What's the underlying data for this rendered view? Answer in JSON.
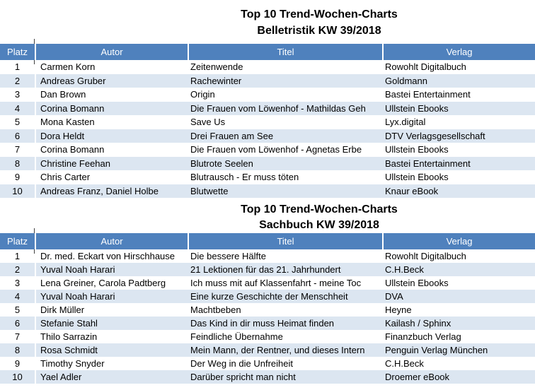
{
  "tables": [
    {
      "id": "belletristik",
      "title_line1": "Top 10 Trend-Wochen-Charts",
      "title_line2": "Belletristik KW 39/2018",
      "columns": [
        "Platz",
        "Autor",
        "Titel",
        "Verlag"
      ],
      "rows": [
        {
          "platz": "1",
          "autor": "Carmen Korn",
          "titel": "Zeitenwende",
          "verlag": "Rowohlt Digitalbuch"
        },
        {
          "platz": "2",
          "autor": "Andreas Gruber",
          "titel": "Rachewinter",
          "verlag": "Goldmann"
        },
        {
          "platz": "3",
          "autor": "Dan Brown",
          "titel": "Origin",
          "verlag": "Bastei Entertainment"
        },
        {
          "platz": "4",
          "autor": "Corina Bomann",
          "titel": "Die Frauen vom Löwenhof - Mathildas Geh",
          "verlag": "Ullstein Ebooks"
        },
        {
          "platz": "5",
          "autor": "Mona Kasten",
          "titel": "Save Us",
          "verlag": "Lyx.digital"
        },
        {
          "platz": "6",
          "autor": "Dora Heldt",
          "titel": "Drei Frauen am See",
          "verlag": "DTV Verlagsgesellschaft"
        },
        {
          "platz": "7",
          "autor": "Corina Bomann",
          "titel": "Die Frauen vom Löwenhof - Agnetas Erbe",
          "verlag": "Ullstein Ebooks"
        },
        {
          "platz": "8",
          "autor": "Christine Feehan",
          "titel": "Blutrote Seelen",
          "verlag": "Bastei Entertainment"
        },
        {
          "platz": "9",
          "autor": "Chris Carter",
          "titel": "Blutrausch - Er muss töten",
          "verlag": "Ullstein Ebooks"
        },
        {
          "platz": "10",
          "autor": "Andreas Franz, Daniel Holbe",
          "titel": "Blutwette",
          "verlag": "Knaur eBook"
        }
      ]
    },
    {
      "id": "sachbuch",
      "title_line1": "Top 10 Trend-Wochen-Charts",
      "title_line2": "Sachbuch KW 39/2018",
      "columns": [
        "Platz",
        "Autor",
        "Titel",
        "Verlag"
      ],
      "rows": [
        {
          "platz": "1",
          "autor": "Dr. med. Eckart von Hirschhause",
          "titel": "Die bessere Hälfte",
          "verlag": "Rowohlt Digitalbuch"
        },
        {
          "platz": "2",
          "autor": "Yuval Noah Harari",
          "titel": "21 Lektionen für das 21. Jahrhundert",
          "verlag": "C.H.Beck"
        },
        {
          "platz": "3",
          "autor": "Lena Greiner, Carola Padtberg",
          "titel": "Ich muss mit auf Klassenfahrt - meine Toc",
          "verlag": "Ullstein Ebooks"
        },
        {
          "platz": "4",
          "autor": "Yuval Noah Harari",
          "titel": "Eine kurze Geschichte der Menschheit",
          "verlag": "DVA"
        },
        {
          "platz": "5",
          "autor": "Dirk Müller",
          "titel": "Machtbeben",
          "verlag": "Heyne"
        },
        {
          "platz": "6",
          "autor": "Stefanie Stahl",
          "titel": "Das Kind in dir muss Heimat finden",
          "verlag": "Kailash / Sphinx"
        },
        {
          "platz": "7",
          "autor": "Thilo Sarrazin",
          "titel": "Feindliche Übernahme",
          "verlag": "Finanzbuch Verlag"
        },
        {
          "platz": "8",
          "autor": "Rosa Schmidt",
          "titel": "Mein Mann, der Rentner, und dieses Intern",
          "verlag": "Penguin Verlag München"
        },
        {
          "platz": "9",
          "autor": "Timothy Snyder",
          "titel": "Der Weg in die Unfreiheit",
          "verlag": "C.H.Beck"
        },
        {
          "platz": "10",
          "autor": "Yael Adler",
          "titel": "Darüber spricht man nicht",
          "verlag": "Droemer eBook"
        }
      ]
    }
  ],
  "colors": {
    "header_bg": "#4F81BD",
    "header_text": "#FFFFFF",
    "band_bg": "#DCE6F1",
    "body_text": "#000000"
  }
}
